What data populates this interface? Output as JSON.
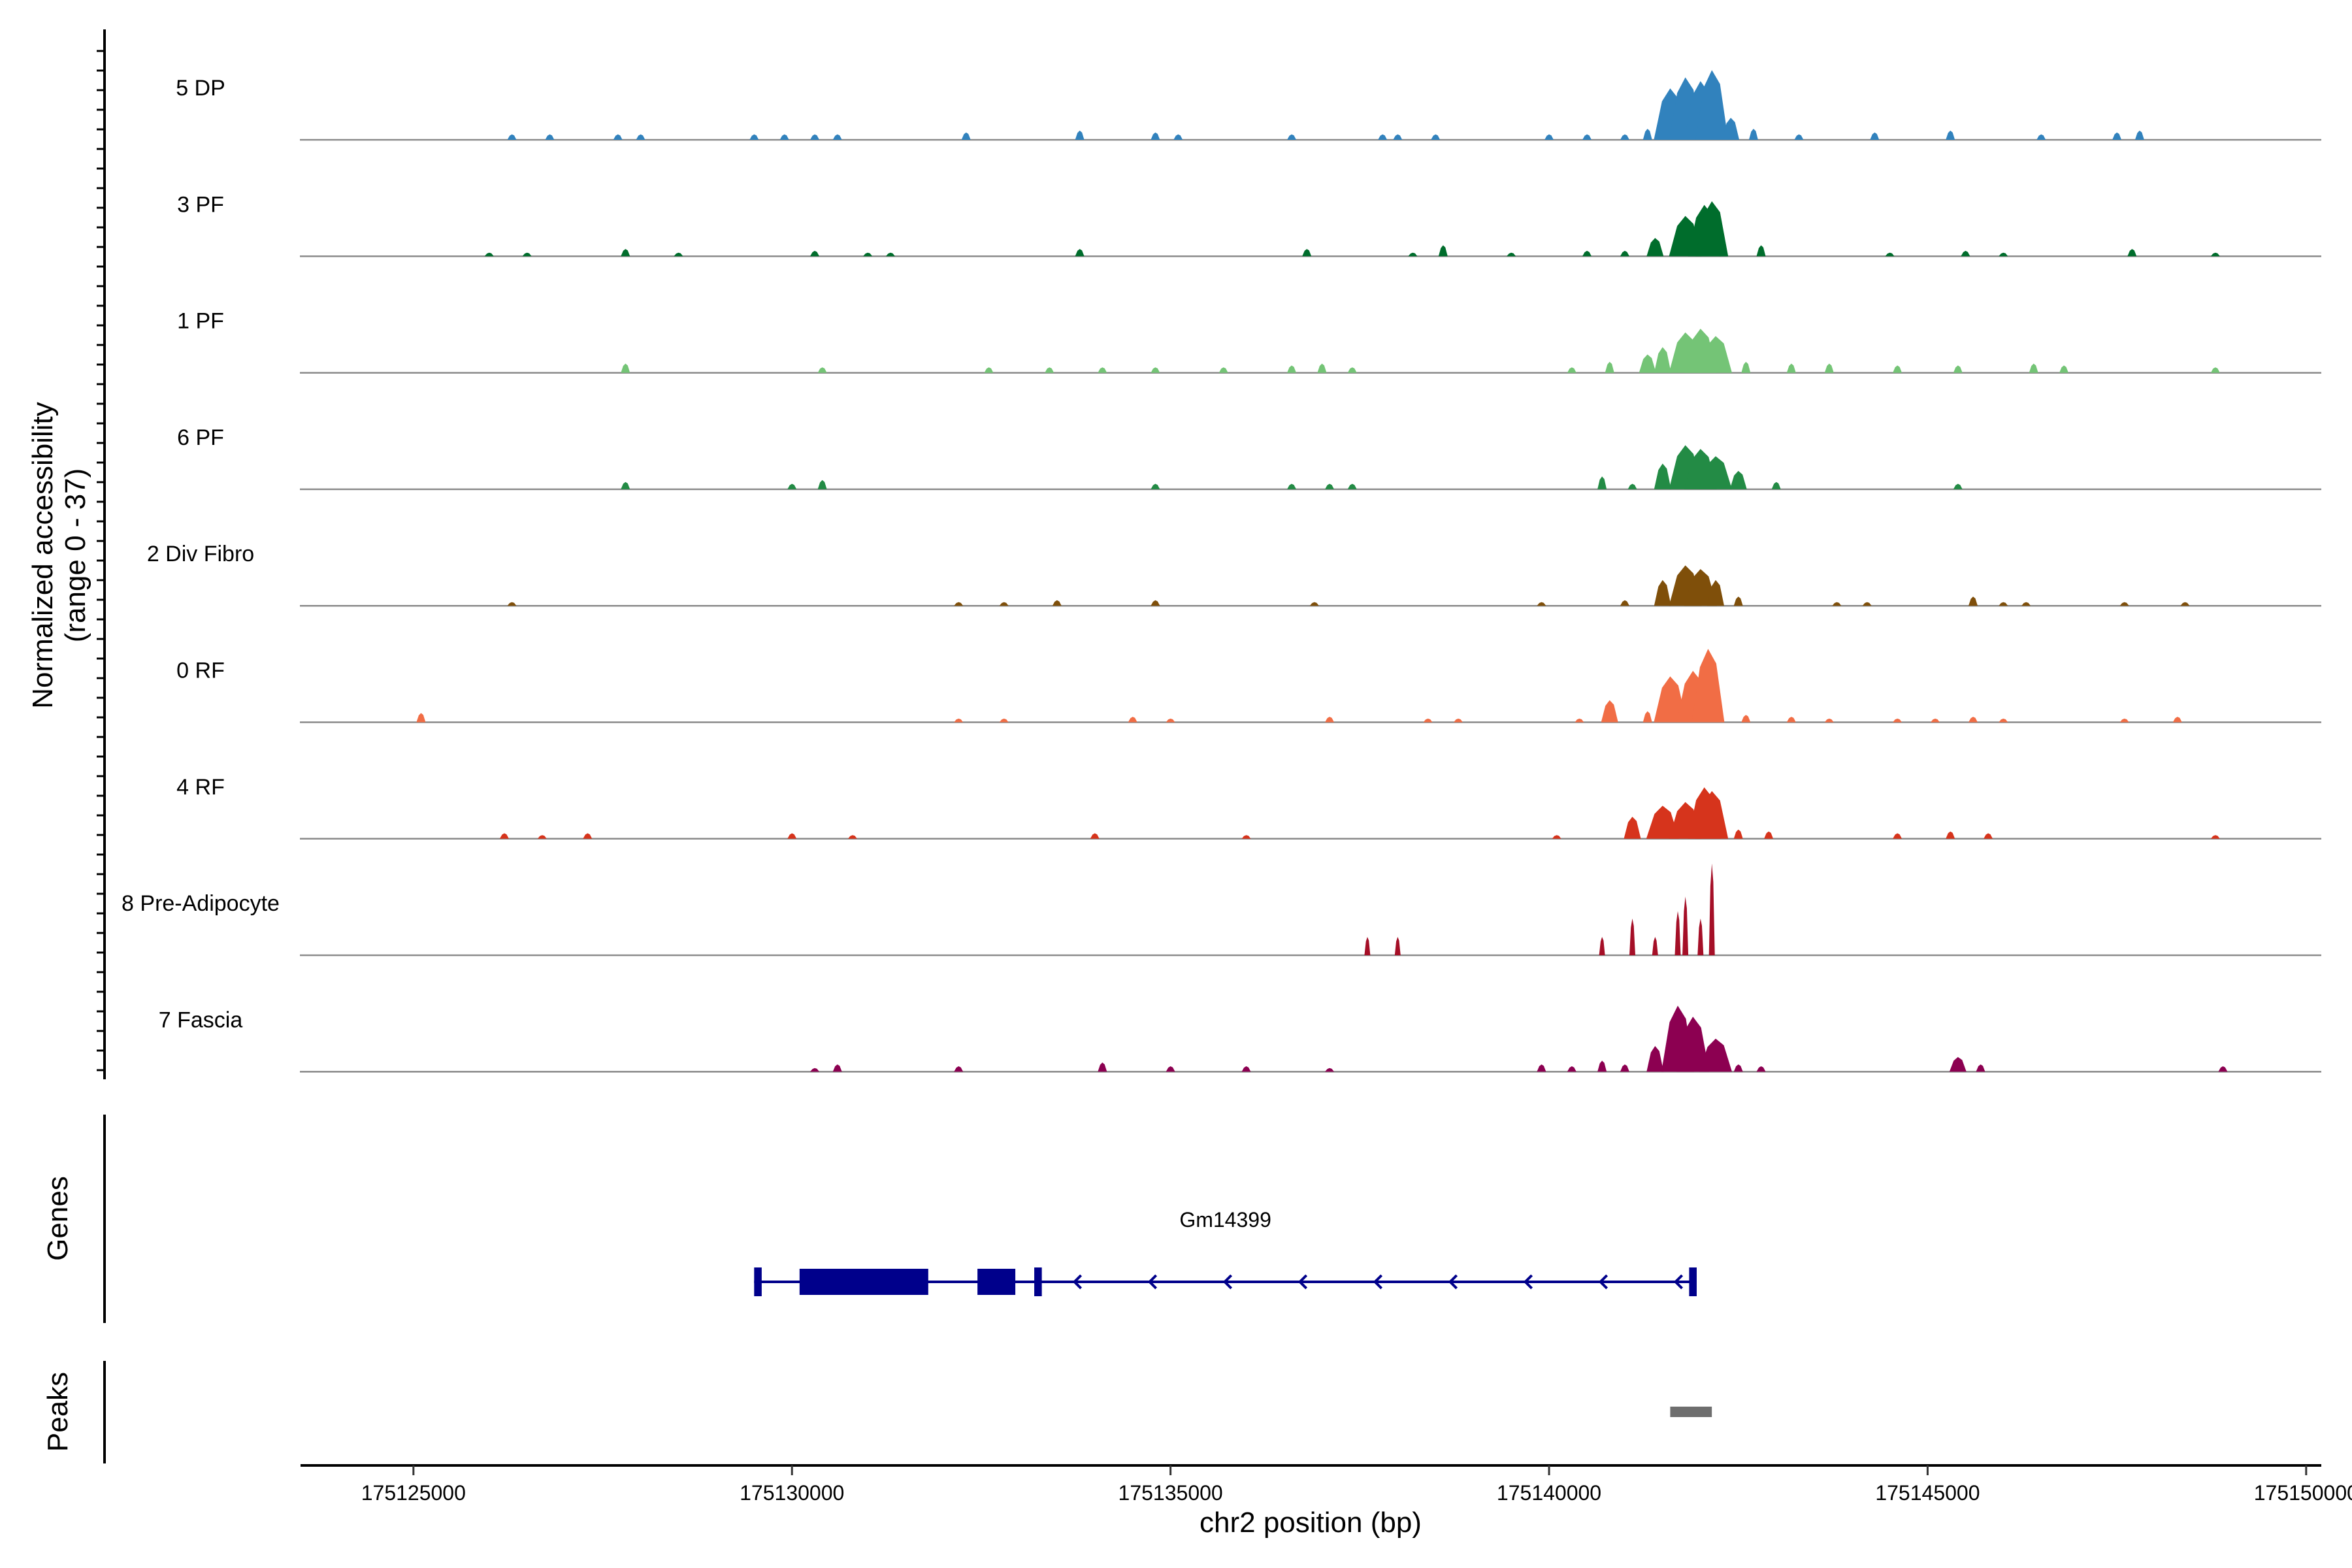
{
  "chart_data": {
    "type": "coverage-track",
    "xlabel": "chr2 position (bp)",
    "ylabel": "Normalized accessibility",
    "ylabel_range": "(range 0 - 37)",
    "y_range": [
      0,
      37
    ],
    "x_range": [
      175123500,
      175150200
    ],
    "x_ticks": [
      175125000,
      175130000,
      175135000,
      175140000,
      175145000,
      175150000
    ],
    "x_tick_labels": [
      "175125000",
      "175130000",
      "175135000",
      "175140000",
      "175145000",
      "175150000"
    ],
    "tracks": [
      {
        "name": "5 DP",
        "color": "#3182bd",
        "peaks": [
          [
            126300,
            3
          ],
          [
            126800,
            3
          ],
          [
            127700,
            3
          ],
          [
            128000,
            3
          ],
          [
            129500,
            3
          ],
          [
            129900,
            3
          ],
          [
            130300,
            3
          ],
          [
            130600,
            3
          ],
          [
            132300,
            4
          ],
          [
            133800,
            5
          ],
          [
            134800,
            4
          ],
          [
            135100,
            3
          ],
          [
            136600,
            3
          ],
          [
            137800,
            3
          ],
          [
            138000,
            3
          ],
          [
            138500,
            3
          ],
          [
            140000,
            3
          ],
          [
            140500,
            3
          ],
          [
            141000,
            3
          ],
          [
            141300,
            6
          ],
          [
            141600,
            28
          ],
          [
            141800,
            34
          ],
          [
            142000,
            32
          ],
          [
            142150,
            38
          ],
          [
            142400,
            12
          ],
          [
            142700,
            6
          ],
          [
            143300,
            3
          ],
          [
            144300,
            4
          ],
          [
            145300,
            5
          ],
          [
            146500,
            3
          ],
          [
            147500,
            4
          ],
          [
            147800,
            5
          ]
        ]
      },
      {
        "name": "3 PF",
        "color": "#006d2c",
        "peaks": [
          [
            126000,
            2
          ],
          [
            126500,
            2
          ],
          [
            127800,
            4
          ],
          [
            128500,
            2
          ],
          [
            130300,
            3
          ],
          [
            131000,
            2
          ],
          [
            131300,
            2
          ],
          [
            133800,
            4
          ],
          [
            136800,
            4
          ],
          [
            138200,
            2
          ],
          [
            138600,
            6
          ],
          [
            139500,
            2
          ],
          [
            140500,
            3
          ],
          [
            141000,
            3
          ],
          [
            141400,
            10
          ],
          [
            141800,
            22
          ],
          [
            142050,
            28
          ],
          [
            142150,
            30
          ],
          [
            142300,
            5
          ],
          [
            142800,
            6
          ],
          [
            144500,
            2
          ],
          [
            145500,
            3
          ],
          [
            146000,
            2
          ],
          [
            147700,
            4
          ],
          [
            148800,
            2
          ]
        ]
      },
      {
        "name": "1 PF",
        "color": "#74c476",
        "peaks": [
          [
            127800,
            5
          ],
          [
            130400,
            3
          ],
          [
            132600,
            3
          ],
          [
            133400,
            3
          ],
          [
            134100,
            3
          ],
          [
            134800,
            3
          ],
          [
            135700,
            3
          ],
          [
            136600,
            4
          ],
          [
            137000,
            5
          ],
          [
            137400,
            3
          ],
          [
            140300,
            3
          ],
          [
            140800,
            6
          ],
          [
            141300,
            10
          ],
          [
            141500,
            14
          ],
          [
            141800,
            22
          ],
          [
            142000,
            24
          ],
          [
            142200,
            20
          ],
          [
            142600,
            6
          ],
          [
            143200,
            5
          ],
          [
            143700,
            5
          ],
          [
            144600,
            4
          ],
          [
            145400,
            4
          ],
          [
            146400,
            5
          ],
          [
            146800,
            4
          ],
          [
            148800,
            3
          ]
        ]
      },
      {
        "name": "6 PF",
        "color": "#238b45",
        "peaks": [
          [
            127800,
            4
          ],
          [
            130000,
            3
          ],
          [
            130400,
            5
          ],
          [
            134800,
            3
          ],
          [
            136600,
            3
          ],
          [
            137100,
            3
          ],
          [
            137400,
            3
          ],
          [
            140700,
            7
          ],
          [
            141100,
            3
          ],
          [
            141500,
            14
          ],
          [
            141800,
            24
          ],
          [
            142000,
            22
          ],
          [
            142200,
            18
          ],
          [
            142500,
            10
          ],
          [
            143000,
            4
          ],
          [
            145400,
            3
          ]
        ]
      },
      {
        "name": "2 Div Fibro",
        "color": "#7f4f0a",
        "peaks": [
          [
            126300,
            2
          ],
          [
            132200,
            2
          ],
          [
            132800,
            2
          ],
          [
            133500,
            3
          ],
          [
            134800,
            3
          ],
          [
            136900,
            2
          ],
          [
            139900,
            2
          ],
          [
            141000,
            3
          ],
          [
            141500,
            14
          ],
          [
            141800,
            22
          ],
          [
            142000,
            20
          ],
          [
            142200,
            14
          ],
          [
            142500,
            5
          ],
          [
            143800,
            2
          ],
          [
            144200,
            2
          ],
          [
            145600,
            5
          ],
          [
            146000,
            2
          ],
          [
            146300,
            2
          ],
          [
            147600,
            2
          ],
          [
            148400,
            2
          ]
        ]
      },
      {
        "name": "0 RF",
        "color": "#f16d45",
        "peaks": [
          [
            125100,
            5
          ],
          [
            132200,
            2
          ],
          [
            132800,
            2
          ],
          [
            134500,
            3
          ],
          [
            135000,
            2
          ],
          [
            137100,
            3
          ],
          [
            138400,
            2
          ],
          [
            138800,
            2
          ],
          [
            140400,
            2
          ],
          [
            140800,
            12
          ],
          [
            141300,
            6
          ],
          [
            141600,
            25
          ],
          [
            141900,
            28
          ],
          [
            142100,
            40
          ],
          [
            142600,
            4
          ],
          [
            143200,
            3
          ],
          [
            143700,
            2
          ],
          [
            144600,
            2
          ],
          [
            145100,
            2
          ],
          [
            145600,
            3
          ],
          [
            146000,
            2
          ],
          [
            147600,
            2
          ],
          [
            148300,
            3
          ]
        ]
      },
      {
        "name": "4 RF",
        "color": "#d6341c",
        "peaks": [
          [
            126200,
            3
          ],
          [
            126700,
            2
          ],
          [
            127300,
            3
          ],
          [
            130000,
            3
          ],
          [
            130800,
            2
          ],
          [
            134000,
            3
          ],
          [
            136000,
            2
          ],
          [
            140100,
            2
          ],
          [
            141100,
            12
          ],
          [
            141500,
            18
          ],
          [
            141800,
            20
          ],
          [
            142050,
            28
          ],
          [
            142150,
            26
          ],
          [
            142500,
            5
          ],
          [
            142900,
            4
          ],
          [
            144600,
            3
          ],
          [
            145300,
            4
          ],
          [
            145800,
            3
          ],
          [
            148800,
            2
          ]
        ]
      },
      {
        "name": "8 Pre-Adipocyte",
        "color": "#a50f27",
        "peaks": [
          [
            137600,
            10
          ],
          [
            138000,
            10
          ],
          [
            140700,
            10
          ],
          [
            141100,
            20
          ],
          [
            141400,
            10
          ],
          [
            141700,
            24
          ],
          [
            141800,
            32
          ],
          [
            142000,
            20
          ],
          [
            142150,
            50
          ]
        ]
      },
      {
        "name": "7 Fascia",
        "color": "#8c0051",
        "peaks": [
          [
            130300,
            2
          ],
          [
            130600,
            4
          ],
          [
            132200,
            3
          ],
          [
            134100,
            5
          ],
          [
            135000,
            3
          ],
          [
            136000,
            3
          ],
          [
            137100,
            2
          ],
          [
            139900,
            4
          ],
          [
            140300,
            3
          ],
          [
            140700,
            6
          ],
          [
            141000,
            4
          ],
          [
            141400,
            14
          ],
          [
            141700,
            36
          ],
          [
            141900,
            30
          ],
          [
            142200,
            18
          ],
          [
            142500,
            4
          ],
          [
            142800,
            3
          ],
          [
            145400,
            8
          ],
          [
            145700,
            4
          ],
          [
            148900,
            3
          ]
        ]
      }
    ],
    "genes_label": "Genes",
    "gene": {
      "name": "Gm14399",
      "strand": "-",
      "start": 175129500,
      "end": 175141950,
      "exons": [
        [
          175129500,
          175129600
        ],
        [
          175130100,
          175131800
        ],
        [
          175132450,
          175132950
        ],
        [
          175133200,
          175133300
        ],
        [
          175141850,
          175141950
        ]
      ]
    },
    "peaks_label": "Peaks",
    "peak_regions": [
      [
        175141600,
        175142150
      ]
    ]
  }
}
